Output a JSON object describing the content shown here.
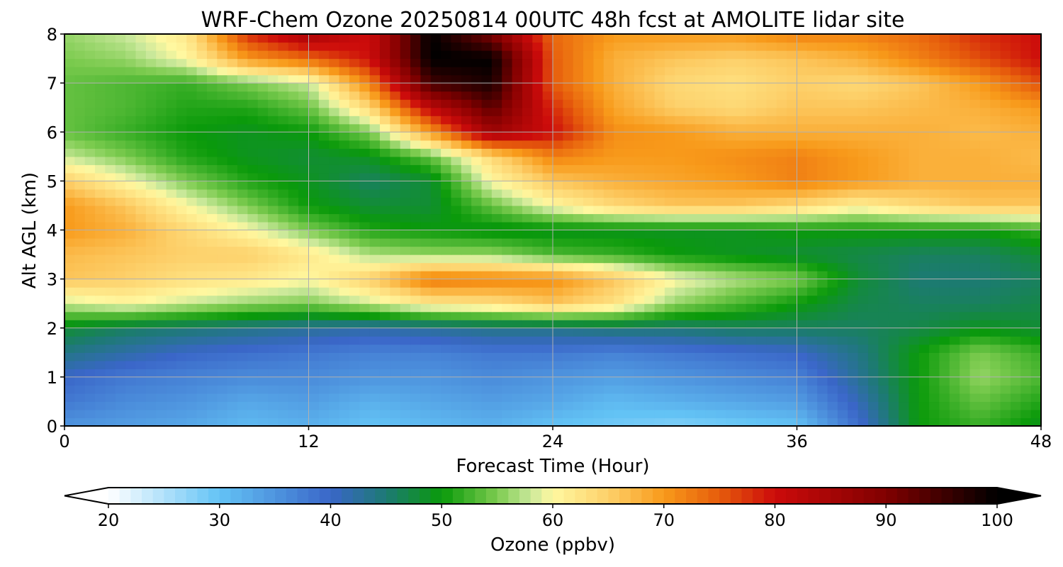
{
  "chart_data": {
    "type": "heatmap",
    "title": "WRF-Chem Ozone  20250814 00UTC 48h fcst at AMOLITE lidar site",
    "xlabel": "Forecast Time (Hour)",
    "ylabel": "Alt AGL (km)",
    "xlim": [
      0,
      48
    ],
    "ylim": [
      0,
      8
    ],
    "xticks": [
      0,
      12,
      24,
      36,
      48
    ],
    "yticks": [
      0,
      1,
      2,
      3,
      4,
      5,
      6,
      7,
      8
    ],
    "grid": true,
    "colorbar": {
      "label": "Ozone  (ppbv)",
      "range": [
        20,
        100
      ],
      "ticks": [
        20,
        30,
        40,
        50,
        60,
        70,
        80,
        90,
        100
      ],
      "extend": "both",
      "stops": [
        {
          "v": 20,
          "c": "#ffffff"
        },
        {
          "v": 30,
          "c": "#63c3f5"
        },
        {
          "v": 40,
          "c": "#3a66c8"
        },
        {
          "v": 45,
          "c": "#1d7a74"
        },
        {
          "v": 50,
          "c": "#0a9a0a"
        },
        {
          "v": 55,
          "c": "#7ccb4f"
        },
        {
          "v": 58,
          "c": "#c9e89a"
        },
        {
          "v": 60,
          "c": "#fff8a0"
        },
        {
          "v": 65,
          "c": "#fdd06a"
        },
        {
          "v": 70,
          "c": "#f89a1a"
        },
        {
          "v": 75,
          "c": "#e65c0c"
        },
        {
          "v": 80,
          "c": "#cc0b0b"
        },
        {
          "v": 90,
          "c": "#800000"
        },
        {
          "v": 100,
          "c": "#000000"
        }
      ]
    },
    "x": [
      0,
      3,
      6,
      9,
      12,
      15,
      18,
      21,
      24,
      27,
      30,
      33,
      36,
      39,
      42,
      45,
      48
    ],
    "y": [
      0,
      0.5,
      1,
      1.5,
      2,
      2.5,
      3,
      3.5,
      4,
      4.5,
      5,
      5.5,
      6,
      6.5,
      7,
      7.5,
      8
    ],
    "z": [
      [
        35,
        34,
        33,
        31,
        32,
        30,
        31,
        32,
        30,
        29,
        28,
        29,
        30,
        39,
        50,
        52,
        49
      ],
      [
        38,
        36,
        35,
        33,
        34,
        32,
        33,
        34,
        33,
        31,
        32,
        33,
        34,
        41,
        50,
        54,
        51
      ],
      [
        40,
        38,
        37,
        36,
        36,
        35,
        35,
        36,
        35,
        34,
        35,
        36,
        37,
        43,
        50,
        56,
        53
      ],
      [
        44,
        42,
        40,
        39,
        38,
        37,
        37,
        38,
        38,
        37,
        38,
        39,
        40,
        44,
        50,
        55,
        52
      ],
      [
        48,
        46,
        45,
        44,
        43,
        42,
        43,
        44,
        44,
        45,
        45,
        46,
        46,
        46,
        47,
        49,
        48
      ],
      [
        58,
        60,
        58,
        56,
        55,
        58,
        62,
        63,
        66,
        63,
        56,
        53,
        50,
        47,
        46,
        46,
        47
      ],
      [
        66,
        65,
        63,
        62,
        60,
        65,
        73,
        72,
        71,
        66,
        60,
        57,
        55,
        48,
        45,
        45,
        46
      ],
      [
        67,
        66,
        65,
        65,
        62,
        57,
        56,
        56,
        53,
        52,
        50,
        49,
        48,
        47,
        46,
        46,
        48
      ],
      [
        70,
        68,
        64,
        60,
        55,
        51,
        50,
        49,
        49,
        49,
        49,
        49,
        50,
        50,
        50,
        50,
        52
      ],
      [
        70,
        66,
        60,
        55,
        50,
        48,
        48,
        54,
        60,
        64,
        66,
        66,
        64,
        61,
        64,
        66,
        66
      ],
      [
        65,
        60,
        55,
        51,
        49,
        46,
        48,
        60,
        66,
        68,
        69,
        70,
        72,
        70,
        68,
        68,
        68
      ],
      [
        58,
        55,
        51,
        49,
        48,
        49,
        54,
        64,
        72,
        70,
        70,
        71,
        72,
        70,
        68,
        68,
        67
      ],
      [
        54,
        52,
        50,
        49,
        50,
        55,
        70,
        86,
        80,
        71,
        70,
        68,
        68,
        68,
        68,
        67,
        68
      ],
      [
        54,
        53,
        51,
        51,
        54,
        64,
        82,
        93,
        78,
        69,
        65,
        64,
        66,
        66,
        67,
        68,
        70
      ],
      [
        54,
        53,
        52,
        55,
        58,
        72,
        95,
        98,
        75,
        68,
        64,
        63,
        65,
        64,
        66,
        70,
        76
      ],
      [
        55,
        56,
        60,
        70,
        74,
        80,
        100,
        100,
        75,
        68,
        66,
        65,
        66,
        68,
        72,
        76,
        80
      ],
      [
        56,
        58,
        62,
        78,
        85,
        80,
        100,
        90,
        74,
        70,
        70,
        70,
        72,
        72,
        74,
        78,
        80
      ]
    ]
  }
}
